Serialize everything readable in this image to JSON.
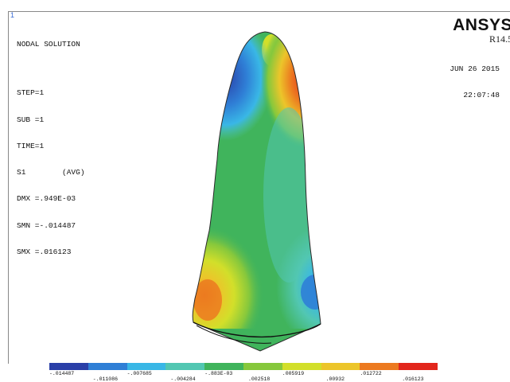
{
  "window": {
    "number": "1"
  },
  "plot_info": {
    "title": "NODAL SOLUTION",
    "step": "STEP=1",
    "sub": "SUB =1",
    "time": "TIME=1",
    "result": "S1        (AVG)",
    "dmx": "DMX =.949E-03",
    "smn": "SMN =-.014487",
    "smx": "SMX =.016123"
  },
  "product": {
    "name": "ANSYS",
    "release": "R14.5"
  },
  "timestamp": {
    "date": "JUN 26 2015",
    "time": "22:07:48"
  },
  "contour_legend": {
    "colors": [
      "#2a3fa8",
      "#2f7fd6",
      "#39b7e6",
      "#52c7b2",
      "#40b45c",
      "#86c83c",
      "#d2df2a",
      "#ecc52a",
      "#ec7a20",
      "#e2261c"
    ],
    "labels_upper": [
      "-.014487",
      "-.007685",
      "-.883E-03",
      ".005919",
      ".012722"
    ],
    "labels_lower": [
      "-.011086",
      "-.004284",
      ".002518",
      ".00932",
      ".016123"
    ]
  }
}
